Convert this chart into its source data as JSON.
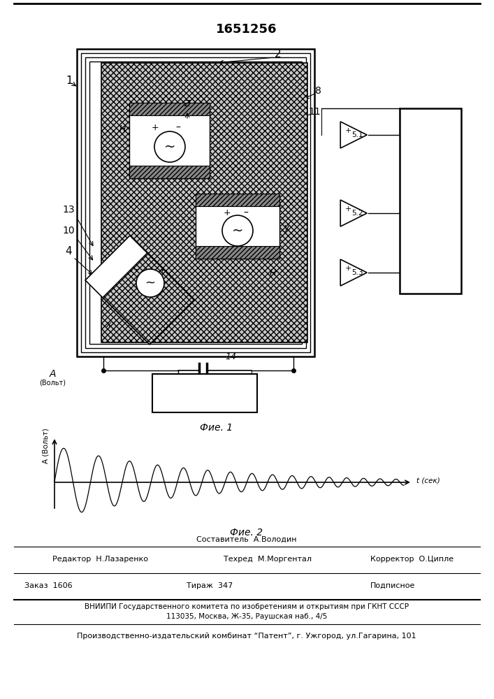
{
  "title": "1651256",
  "fig1_label": "Фие. 1",
  "fig2_label": "Фие. 2",
  "footer_sestavitel": "Составитель  А.Володин",
  "footer_editor": "Редактор  Н.Лазаренко",
  "footer_techred": "Техред  М.Моргентал",
  "footer_corrector": "Корректор  О.Ципле",
  "footer_order": "Заказ  1606",
  "footer_tirazh": "Тираж  347",
  "footer_podpisnoe": "Подписное",
  "footer_vniip": "ВНИИПИ Государственного комитета по изобретениям и открытиям при ГКНТ СССР",
  "footer_addr": "113035, Москва, Ж-35, Раушская наб., 4/5",
  "footer_pub": "Производственно-издательский комбинат “Патент”, г. Ужгород, ул.Гагарина, 101",
  "bg_color": "#ffffff"
}
